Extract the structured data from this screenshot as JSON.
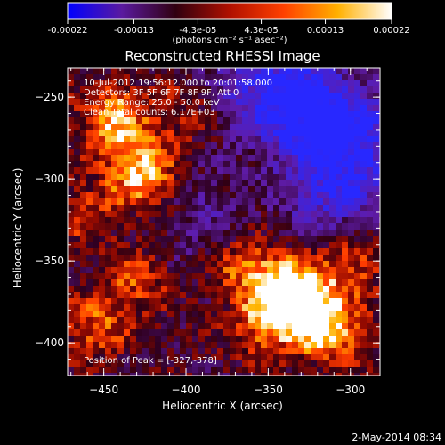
{
  "colorbar": {
    "ticks": [
      "-0.00022",
      "-0.00013",
      "-4.3e-05",
      "4.3e-05",
      "0.00013",
      "0.00022"
    ],
    "tick_values": [
      -0.00022,
      -0.00013,
      -4.3e-05,
      4.3e-05,
      0.00013,
      0.00022
    ],
    "range": [
      -0.00022,
      0.00022
    ],
    "units": "(photons cm⁻² s⁻¹ asec⁻²)",
    "colors": [
      "#0000ff",
      "#5a1aa0",
      "#300010",
      "#b01000",
      "#ff4000",
      "#ffb000",
      "#ffffff"
    ]
  },
  "chart_data": {
    "type": "heatmap",
    "title": "Reconstructed RHESSI Image",
    "xlabel": "Heliocentric X (arcsec)",
    "ylabel": "Heliocentric Y (arcsec)",
    "xlim": [
      -472,
      -282
    ],
    "ylim": [
      -420,
      -232
    ],
    "x_ticks": [
      -450,
      -400,
      -350,
      -300
    ],
    "y_ticks": [
      -250,
      -300,
      -350,
      -400
    ],
    "x_tick_labels": [
      "−450",
      "−400",
      "−350",
      "−300"
    ],
    "y_tick_labels": [
      "−250",
      "−300",
      "−350",
      "−400"
    ],
    "annotations": [
      "10-Jul-2012 19:56:12.000 to 20:01:58.000",
      "Detectors: 3F 5F 6F 7F 8F 9F, Att 0",
      "Energy Range: 25.0 - 50.0 keV",
      "Clean    Total counts: 6.17E+03"
    ],
    "peak_label": "Position of Peak = [-327,-378]",
    "peak": [
      -327,
      -378
    ],
    "bright_sources": [
      {
        "x": -445,
        "y": -262,
        "level": 0.8
      },
      {
        "x": -430,
        "y": -290,
        "level": 0.7
      },
      {
        "x": -420,
        "y": -305,
        "level": 0.5
      },
      {
        "x": -455,
        "y": -390,
        "level": 0.55
      },
      {
        "x": -430,
        "y": -360,
        "level": 0.5
      },
      {
        "x": -365,
        "y": -355,
        "level": 0.55
      },
      {
        "x": -352,
        "y": -390,
        "level": 0.6
      },
      {
        "x": -327,
        "y": -378,
        "level": 1.0
      },
      {
        "x": -340,
        "y": -366,
        "level": 0.85
      },
      {
        "x": -310,
        "y": -395,
        "level": 0.7
      },
      {
        "x": -300,
        "y": -350,
        "level": 0.6
      },
      {
        "x": -400,
        "y": -260,
        "level": 0.35
      },
      {
        "x": -460,
        "y": -320,
        "level": 0.4
      }
    ],
    "dim_sources": [
      {
        "x": -330,
        "y": -255,
        "level": 0.9
      },
      {
        "x": -300,
        "y": -275,
        "level": 0.8
      },
      {
        "x": -310,
        "y": -310,
        "level": 0.6
      },
      {
        "x": -360,
        "y": -240,
        "level": 0.5
      },
      {
        "x": -395,
        "y": -320,
        "level": 0.35
      }
    ]
  },
  "footer": {
    "date": "2-May-2014 08:34"
  }
}
